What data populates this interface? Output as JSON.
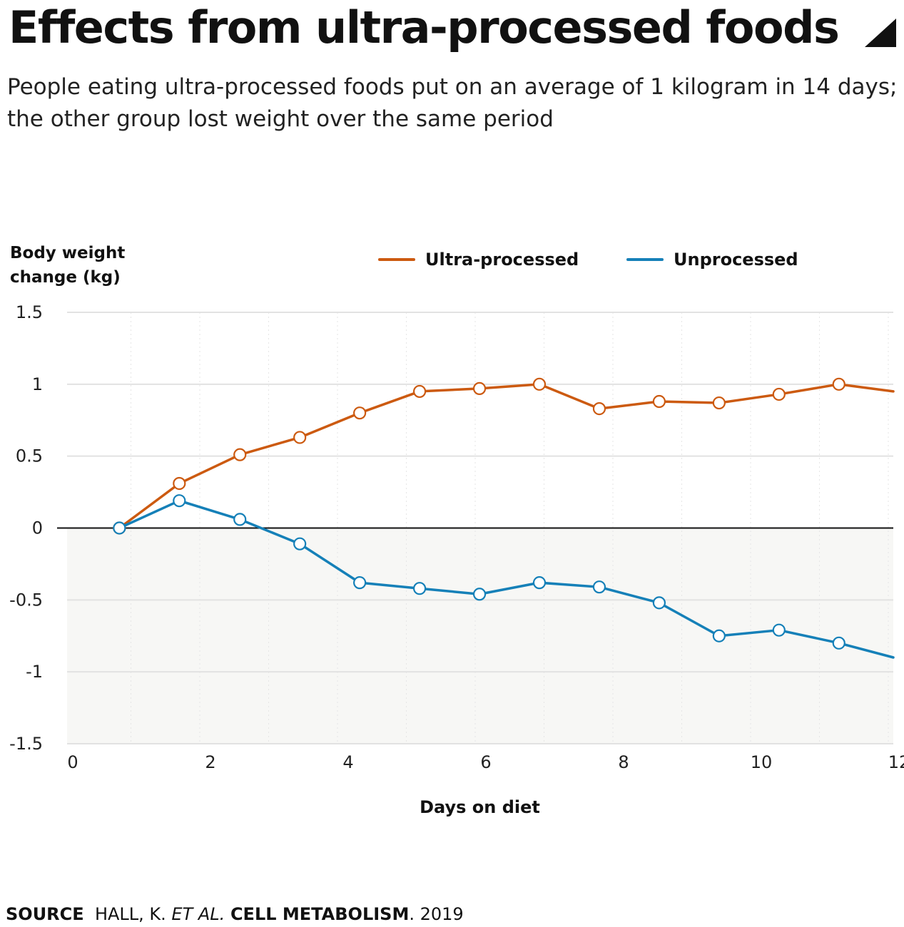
{
  "header": {
    "title": "Effects from ultra-processed foods",
    "subtitle": "People eating ultra-processed foods put on an average of 1 kilogram in 14 days; the other group lost weight over the same period"
  },
  "source": {
    "label": "SOURCE",
    "author": "HALL, K.",
    "etal": "ET AL.",
    "journal": "CELL METABOLISM",
    "year": ". 2019"
  },
  "colors": {
    "ultra": "#cc5a10",
    "unprocessed": "#1580b8",
    "grid": "#e2e2e2",
    "negative_band": "#f7f7f5"
  },
  "chart_data": {
    "type": "line",
    "ylabel_lines": [
      "Body weight",
      "change (kg)"
    ],
    "xlabel": "Days on diet",
    "xlim": [
      0,
      12
    ],
    "ylim": [
      -1.5,
      1.5
    ],
    "x_ticks": [
      0,
      2,
      4,
      6,
      8,
      10,
      12
    ],
    "y_ticks": [
      1.5,
      1,
      0.5,
      0,
      -0.5,
      -1,
      -1.5
    ],
    "y_tick_labels": [
      "1.5",
      "1",
      "0.5",
      "0",
      "-0.5",
      "-1",
      "-1.5"
    ],
    "grid": true,
    "legend_position": "top",
    "series": [
      {
        "name": "Ultra-processed",
        "x": [
          0.76,
          1.63,
          2.51,
          3.38,
          4.25,
          5.12,
          5.99,
          6.86,
          7.73,
          8.6,
          9.47,
          10.34,
          11.21,
          12.08
        ],
        "values": [
          0,
          0.31,
          0.51,
          0.63,
          0.8,
          0.95,
          0.97,
          1.0,
          0.83,
          0.88,
          0.87,
          0.93,
          1.0,
          0.95
        ]
      },
      {
        "name": "Unprocessed",
        "x": [
          0.76,
          1.63,
          2.51,
          3.38,
          4.25,
          5.12,
          5.99,
          6.86,
          7.73,
          8.6,
          9.47,
          10.34,
          11.21,
          12.08
        ],
        "values": [
          0,
          0.19,
          0.06,
          -0.11,
          -0.38,
          -0.42,
          -0.46,
          -0.38,
          -0.41,
          -0.52,
          -0.75,
          -0.71,
          -0.8,
          -0.9
        ]
      }
    ]
  }
}
